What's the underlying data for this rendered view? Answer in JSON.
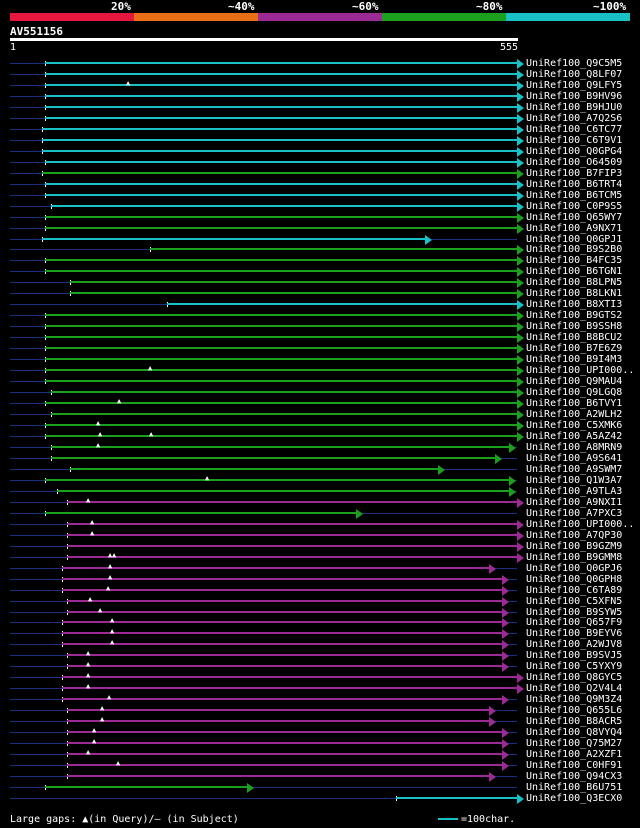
{
  "legend": {
    "labels": [
      "20%",
      "~40%",
      "~60%",
      "~80%",
      "~100%"
    ],
    "colors": [
      "#e5173e",
      "#e86f16",
      "#9b2a95",
      "#1aa01c",
      "#19c0c6"
    ]
  },
  "query": {
    "title": "AV551156",
    "start": "1",
    "end": "555"
  },
  "hits": [
    {
      "name": "UniRef100_Q9C5M5",
      "color": "#19c0c6"
    },
    {
      "name": "UniRef100_Q8LF07",
      "color": "#19c0c6"
    },
    {
      "name": "UniRef100_Q9LFY5",
      "color": "#19c0c6"
    },
    {
      "name": "UniRef100_B9HV96",
      "color": "#19c0c6"
    },
    {
      "name": "UniRef100_B9HJU0",
      "color": "#19c0c6"
    },
    {
      "name": "UniRef100_A7Q2S6",
      "color": "#19c0c6"
    },
    {
      "name": "UniRef100_C6TC77",
      "color": "#19c0c6"
    },
    {
      "name": "UniRef100_C6T9V1",
      "color": "#19c0c6"
    },
    {
      "name": "UniRef100_Q0GPG4",
      "color": "#19c0c6"
    },
    {
      "name": "UniRef100_O64509",
      "color": "#19c0c6"
    },
    {
      "name": "UniRef100_B7FIP3",
      "color": "#1aa01c"
    },
    {
      "name": "UniRef100_B6TRT4",
      "color": "#19c0c6"
    },
    {
      "name": "UniRef100_B6TCM5",
      "color": "#19c0c6"
    },
    {
      "name": "UniRef100_C0P9S5",
      "color": "#19c0c6"
    },
    {
      "name": "UniRef100_Q65WY7",
      "color": "#1aa01c"
    },
    {
      "name": "UniRef100_A9NX71",
      "color": "#1aa01c"
    },
    {
      "name": "UniRef100_Q0GPJ1",
      "color": "#19c0c6"
    },
    {
      "name": "UniRef100_B9S2B0",
      "color": "#1aa01c"
    },
    {
      "name": "UniRef100_B4FC35",
      "color": "#1aa01c"
    },
    {
      "name": "UniRef100_B6TGN1",
      "color": "#1aa01c"
    },
    {
      "name": "UniRef100_B8LPN5",
      "color": "#1aa01c"
    },
    {
      "name": "UniRef100_B8LKN1",
      "color": "#1aa01c"
    },
    {
      "name": "UniRef100_B8XTI3",
      "color": "#19c0c6"
    },
    {
      "name": "UniRef100_B9GTS2",
      "color": "#1aa01c"
    },
    {
      "name": "UniRef100_B9SSH8",
      "color": "#1aa01c"
    },
    {
      "name": "UniRef100_B8BCU2",
      "color": "#1aa01c"
    },
    {
      "name": "UniRef100_B7E6Z9",
      "color": "#1aa01c"
    },
    {
      "name": "UniRef100_B9I4M3",
      "color": "#1aa01c"
    },
    {
      "name": "UniRef100_UPI000..",
      "color": "#1aa01c"
    },
    {
      "name": "UniRef100_Q9MAU4",
      "color": "#1aa01c"
    },
    {
      "name": "UniRef100_Q9LGQ8",
      "color": "#1aa01c"
    },
    {
      "name": "UniRef100_B6TVY1",
      "color": "#1aa01c"
    },
    {
      "name": "UniRef100_A2WLH2",
      "color": "#1aa01c"
    },
    {
      "name": "UniRef100_C5XMK6",
      "color": "#1aa01c"
    },
    {
      "name": "UniRef100_A5AZ42",
      "color": "#1aa01c"
    },
    {
      "name": "UniRef100_A8MRN9",
      "color": "#1aa01c"
    },
    {
      "name": "UniRef100_A9S641",
      "color": "#1aa01c"
    },
    {
      "name": "UniRef100_A9SWM7",
      "color": "#1aa01c"
    },
    {
      "name": "UniRef100_Q1W3A7",
      "color": "#1aa01c"
    },
    {
      "name": "UniRef100_A9TLA3",
      "color": "#1aa01c"
    },
    {
      "name": "UniRef100_A9NXI1",
      "color": "#9b2a95"
    },
    {
      "name": "UniRef100_A7PXC3",
      "color": "#1aa01c"
    },
    {
      "name": "UniRef100_UPI000..",
      "color": "#9b2a95"
    },
    {
      "name": "UniRef100_A7QP30",
      "color": "#9b2a95"
    },
    {
      "name": "UniRef100_B9GZM9",
      "color": "#9b2a95"
    },
    {
      "name": "UniRef100_B9GMM8",
      "color": "#9b2a95"
    },
    {
      "name": "UniRef100_Q0GPJ6",
      "color": "#9b2a95"
    },
    {
      "name": "UniRef100_Q0GPH8",
      "color": "#9b2a95"
    },
    {
      "name": "UniRef100_C6TA89",
      "color": "#9b2a95"
    },
    {
      "name": "UniRef100_C5XFN5",
      "color": "#9b2a95"
    },
    {
      "name": "UniRef100_B9SYW5",
      "color": "#9b2a95"
    },
    {
      "name": "UniRef100_Q657F9",
      "color": "#9b2a95"
    },
    {
      "name": "UniRef100_B9EYV6",
      "color": "#9b2a95"
    },
    {
      "name": "UniRef100_A2WJV8",
      "color": "#9b2a95"
    },
    {
      "name": "UniRef100_B9SVJ5",
      "color": "#9b2a95"
    },
    {
      "name": "UniRef100_C5YXY9",
      "color": "#9b2a95"
    },
    {
      "name": "UniRef100_Q8GYC5",
      "color": "#9b2a95"
    },
    {
      "name": "UniRef100_Q2V4L4",
      "color": "#9b2a95"
    },
    {
      "name": "UniRef100_Q9M3Z4",
      "color": "#9b2a95"
    },
    {
      "name": "UniRef100_Q655L6",
      "color": "#9b2a95"
    },
    {
      "name": "UniRef100_B8ACR5",
      "color": "#9b2a95"
    },
    {
      "name": "UniRef100_Q8VYQ4",
      "color": "#9b2a95"
    },
    {
      "name": "UniRef100_Q75M27",
      "color": "#9b2a95"
    },
    {
      "name": "UniRef100_A2XZF1",
      "color": "#9b2a95"
    },
    {
      "name": "UniRef100_C0HF91",
      "color": "#9b2a95"
    },
    {
      "name": "UniRef100_Q94CX3",
      "color": "#9b2a95"
    },
    {
      "name": "UniRef100_B6U751",
      "color": "#1aa01c"
    },
    {
      "name": "UniRef100_Q3ECX0",
      "color": "#19c0c6"
    }
  ],
  "footer": {
    "gaps_text": "Large gaps: ▲(in Query)/— (in Subject)",
    "scale_text": "=100char."
  }
}
